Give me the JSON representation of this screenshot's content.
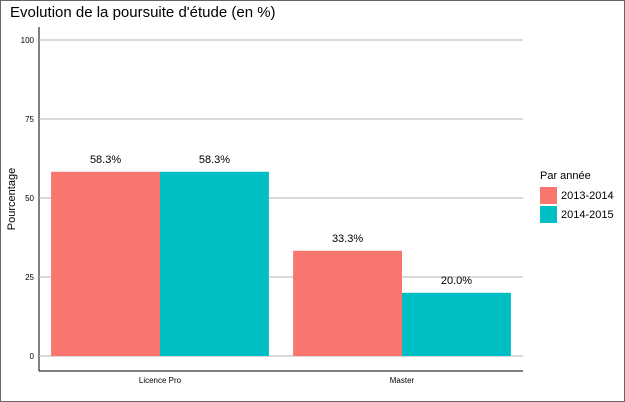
{
  "chart_data": {
    "type": "bar",
    "title": "Evolution de la poursuite d'étude (en %)",
    "xlabel": "",
    "ylabel": "Pourcentage",
    "ylim": [
      0,
      100
    ],
    "yticks": [
      0,
      25,
      50,
      75,
      100
    ],
    "categories": [
      "Licence Pro",
      "Master"
    ],
    "legend_title": "Par année",
    "legend_position": "right",
    "grid": true,
    "series": [
      {
        "name": "2013-2014",
        "color": "#F8766D",
        "values": [
          58.3,
          33.3
        ],
        "labels": [
          "58.3%",
          "33.3%"
        ]
      },
      {
        "name": "2014-2015",
        "color": "#00BFC4",
        "values": [
          58.3,
          20.0
        ],
        "labels": [
          "58.3%",
          "20.0%"
        ]
      }
    ]
  }
}
